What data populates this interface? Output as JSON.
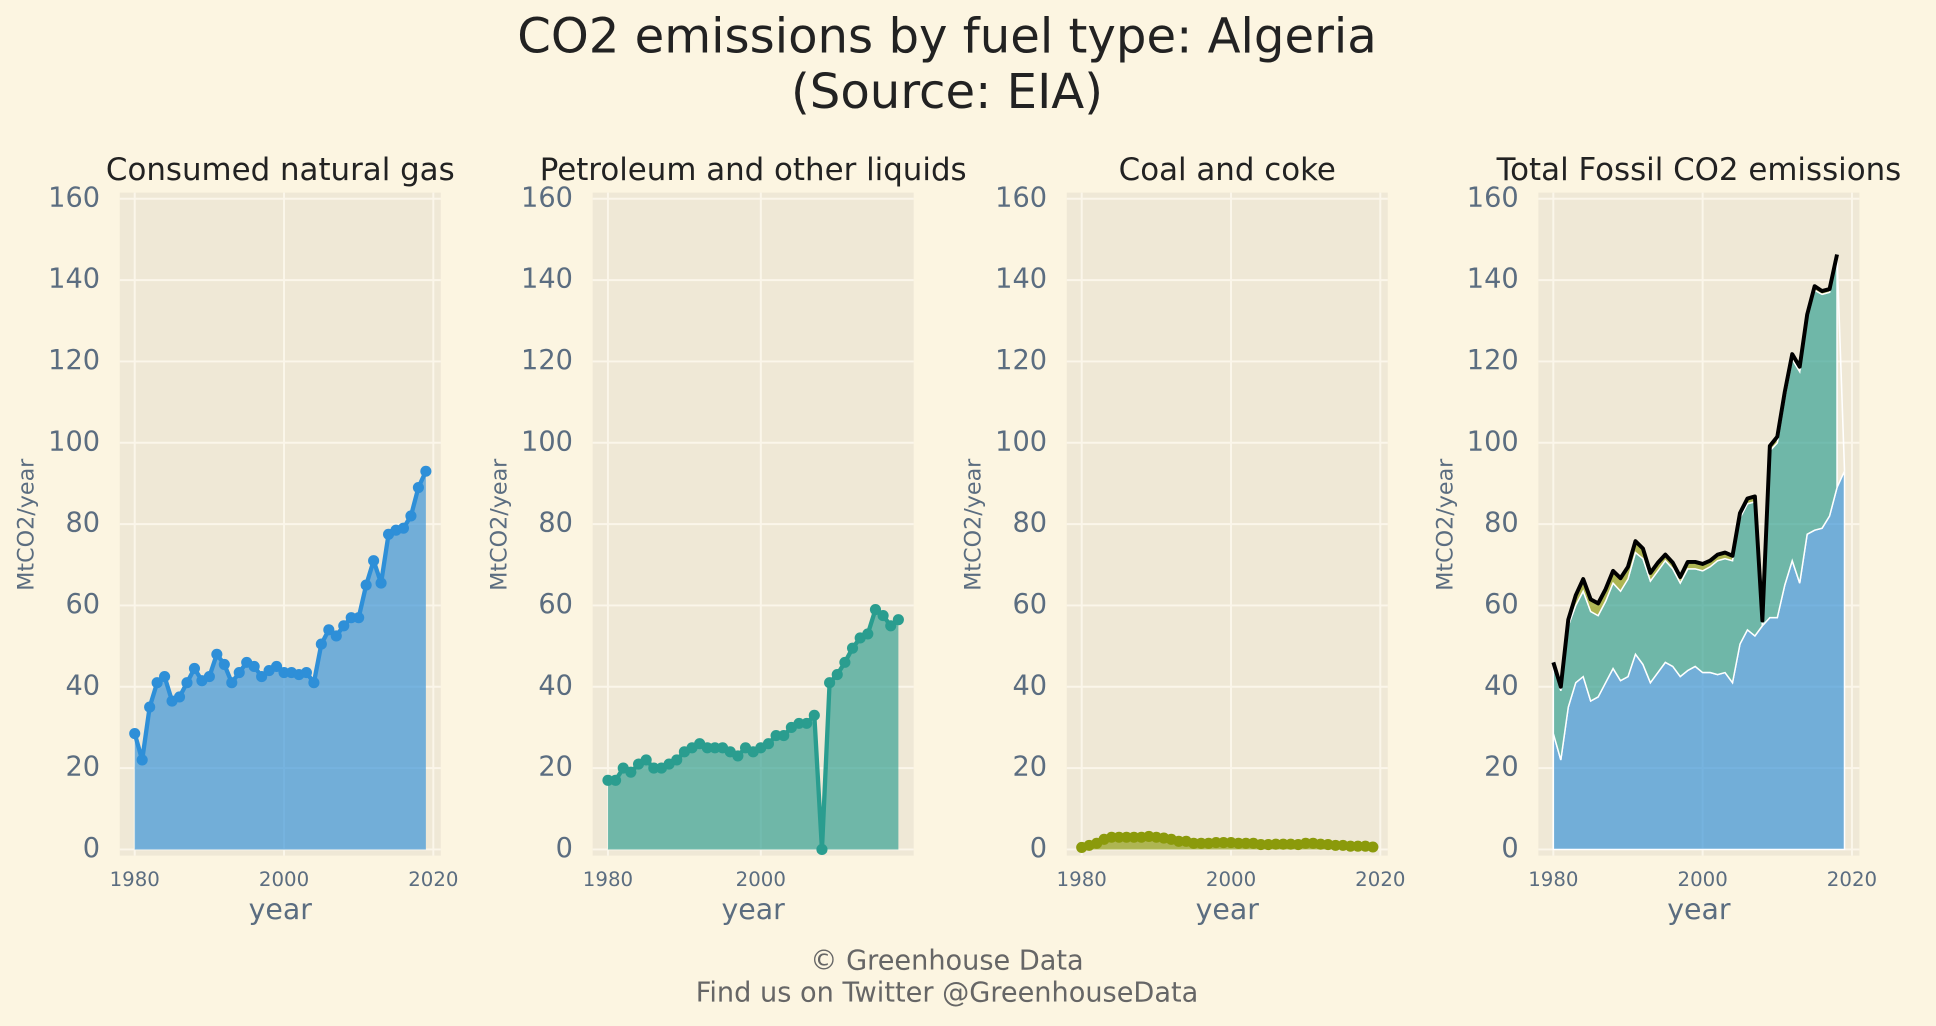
{
  "title": "CO2 emissions by fuel type: Algeria",
  "subtitle": "(Source: EIA)",
  "footer": [
    "© Greenhouse Data",
    "Find us on Twitter @GreenhouseData"
  ],
  "chart_data": [
    {
      "type": "area",
      "title": "Consumed natural gas",
      "xlabel": "year",
      "ylabel": "MtCO2/year",
      "xlim": [
        1978,
        2021
      ],
      "xticks": [
        1980,
        2000,
        2020
      ],
      "ylim": [
        0,
        160
      ],
      "yticks": [
        0,
        20,
        40,
        60,
        80,
        100,
        120,
        140,
        160
      ],
      "grid": true,
      "x": [
        1980,
        1981,
        1982,
        1983,
        1984,
        1985,
        1986,
        1987,
        1988,
        1989,
        1990,
        1991,
        1992,
        1993,
        1994,
        1995,
        1996,
        1997,
        1998,
        1999,
        2000,
        2001,
        2002,
        2003,
        2004,
        2005,
        2006,
        2007,
        2008,
        2009,
        2010,
        2011,
        2012,
        2013,
        2014,
        2015,
        2016,
        2017,
        2018,
        2019
      ],
      "series": [
        {
          "color": "#2e8fd8",
          "values": [
            28.5,
            22,
            35,
            41,
            42.5,
            36.5,
            37.5,
            41,
            44.5,
            41.5,
            42.5,
            48,
            45.5,
            41,
            43.5,
            46,
            45,
            42.5,
            44,
            45,
            43.5,
            43.5,
            43,
            43.5,
            41,
            50.5,
            54,
            52.5,
            55,
            57,
            57,
            65,
            71,
            65.5,
            77.5,
            78.5,
            79,
            82,
            89,
            93
          ]
        }
      ]
    },
    {
      "type": "area",
      "title": "Petroleum and other liquids",
      "xlabel": "year",
      "ylabel": "MtCO2/year",
      "xlim": [
        1978,
        2020
      ],
      "xticks": [
        1980,
        2000
      ],
      "ylim": [
        0,
        160
      ],
      "yticks": [
        0,
        20,
        40,
        60,
        80,
        100,
        120,
        140,
        160
      ],
      "grid": true,
      "x": [
        1980,
        1981,
        1982,
        1983,
        1984,
        1985,
        1986,
        1987,
        1988,
        1989,
        1990,
        1991,
        1992,
        1993,
        1994,
        1995,
        1996,
        1997,
        1998,
        1999,
        2000,
        2001,
        2002,
        2003,
        2004,
        2005,
        2006,
        2007,
        2008,
        2009,
        2010,
        2011,
        2012,
        2013,
        2014,
        2015,
        2016,
        2017,
        2018
      ],
      "series": [
        {
          "color": "#2a9d8f",
          "values": [
            17,
            17,
            20,
            19,
            21,
            22,
            20,
            20,
            21,
            22,
            24,
            25,
            26,
            25,
            25,
            25,
            24,
            23,
            25,
            24,
            25,
            26,
            28,
            28,
            30,
            31,
            31,
            33,
            0,
            41,
            43,
            46,
            49.5,
            52,
            53,
            59,
            57.5,
            55,
            56.5
          ]
        }
      ]
    },
    {
      "type": "area",
      "title": "Coal and coke",
      "xlabel": "year",
      "ylabel": "MtCO2/year",
      "xlim": [
        1978,
        2021
      ],
      "xticks": [
        1980,
        2000,
        2020
      ],
      "ylim": [
        0,
        160
      ],
      "yticks": [
        0,
        20,
        40,
        60,
        80,
        100,
        120,
        140,
        160
      ],
      "grid": true,
      "x": [
        1980,
        1981,
        1982,
        1983,
        1984,
        1985,
        1986,
        1987,
        1988,
        1989,
        1990,
        1991,
        1992,
        1993,
        1994,
        1995,
        1996,
        1997,
        1998,
        1999,
        2000,
        2001,
        2002,
        2003,
        2004,
        2005,
        2006,
        2007,
        2008,
        2009,
        2010,
        2011,
        2012,
        2013,
        2014,
        2015,
        2016,
        2017,
        2018,
        2019
      ],
      "series": [
        {
          "color": "#8b9a0b",
          "values": [
            0.5,
            1,
            1.5,
            2.5,
            3,
            3,
            3,
            3,
            3,
            3.2,
            3,
            2.8,
            2.5,
            2,
            2,
            1.5,
            1.5,
            1.5,
            1.7,
            1.7,
            1.7,
            1.5,
            1.5,
            1.5,
            1.2,
            1.2,
            1.3,
            1.3,
            1.3,
            1.2,
            1.5,
            1.5,
            1.3,
            1.2,
            1,
            1,
            0.8,
            0.8,
            0.8,
            0.6
          ]
        }
      ]
    },
    {
      "type": "stacked_total",
      "title": "Total Fossil CO2 emissions",
      "xlabel": "year",
      "ylabel": "MtCO2/year",
      "xlim": [
        1978,
        2021
      ],
      "xticks": [
        1980,
        2000,
        2020
      ],
      "ylim": [
        0,
        160
      ],
      "yticks": [
        0,
        20,
        40,
        60,
        80,
        100,
        120,
        140,
        160
      ],
      "grid": true,
      "x": [
        1980,
        1981,
        1982,
        1983,
        1984,
        1985,
        1986,
        1987,
        1988,
        1989,
        1990,
        1991,
        1992,
        1993,
        1994,
        1995,
        1996,
        1997,
        1998,
        1999,
        2000,
        2001,
        2002,
        2003,
        2004,
        2005,
        2006,
        2007,
        2008,
        2009,
        2010,
        2011,
        2012,
        2013,
        2014,
        2015,
        2016,
        2017,
        2018
      ],
      "series": [
        {
          "color": "#000000",
          "values": [
            46,
            40,
            56.5,
            62.5,
            66.5,
            61.5,
            60.5,
            64,
            68.5,
            66.7,
            69.5,
            75.8,
            74,
            68,
            70.5,
            72.5,
            70.5,
            67,
            70.7,
            70.7,
            70.2,
            71,
            72.5,
            73,
            72.2,
            82.7,
            86.3,
            86.8,
            56.3,
            99.2,
            101.5,
            112.5,
            121.8,
            118.7,
            131.5,
            138.5,
            137.3,
            137.8,
            146.3
          ]
        }
      ]
    }
  ]
}
